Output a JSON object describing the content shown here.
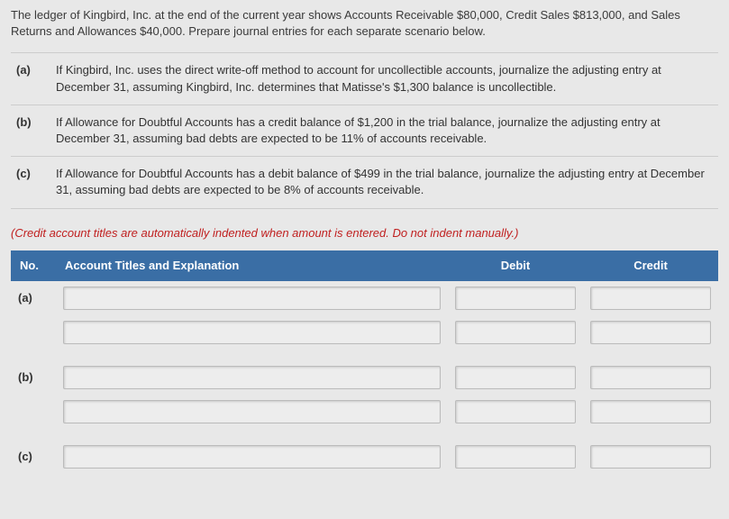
{
  "intro": "The ledger of Kingbird, Inc. at the end of the current year shows Accounts Receivable $80,000, Credit Sales $813,000, and Sales Returns and Allowances $40,000. Prepare journal entries for each separate scenario below.",
  "scenarios": [
    {
      "label": "(a)",
      "text": "If Kingbird, Inc. uses the direct write-off method to account for uncollectible accounts, journalize the adjusting entry at December 31, assuming Kingbird, Inc. determines that Matisse's $1,300 balance is uncollectible."
    },
    {
      "label": "(b)",
      "text": "If Allowance for Doubtful Accounts has a credit balance of $1,200 in the trial balance, journalize the adjusting entry at December 31, assuming bad debts are expected to be 11% of accounts receivable."
    },
    {
      "label": "(c)",
      "text": "If Allowance for Doubtful Accounts has a debit balance of $499 in the trial balance, journalize the adjusting entry at December 31, assuming bad debts are expected to be 8% of accounts receivable."
    }
  ],
  "note": "(Credit account titles are automatically indented when amount is entered. Do not indent manually.)",
  "headers": {
    "no": "No.",
    "acct": "Account Titles and Explanation",
    "debit": "Debit",
    "credit": "Credit"
  },
  "rowLabels": {
    "a": "(a)",
    "b": "(b)",
    "c": "(c)"
  },
  "colors": {
    "header_bg": "#3a6ea5",
    "header_text": "#ffffff",
    "note_text": "#c02020",
    "page_bg": "#e8e8e8",
    "input_bg": "#ededed",
    "border": "#cccccc"
  }
}
